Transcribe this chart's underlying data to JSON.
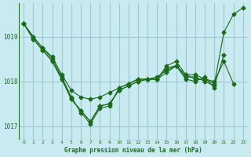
{
  "title": "Graphe pression niveau de la mer (hPa)",
  "bg_color": "#c8eaf0",
  "line_color": "#1a6b1a",
  "grid_color": "#a0c8d0",
  "ylabel_ticks": [
    1017,
    1018,
    1019
  ],
  "xlim": [
    -0.5,
    23.5
  ],
  "ylim": [
    1016.7,
    1019.75
  ],
  "series": [
    {
      "x": [
        0,
        1,
        2,
        3,
        4,
        5,
        6,
        7,
        8,
        9,
        10,
        11,
        12,
        13,
        14,
        15,
        16,
        17,
        18,
        19,
        20,
        21,
        22,
        23
      ],
      "y": [
        1019.3,
        1019.0,
        1018.75,
        1018.5,
        1018.1,
        1017.65,
        1017.3,
        1017.05,
        1017.4,
        1017.45,
        1017.85,
        1017.95,
        1018.05,
        1018.05,
        1018.05,
        1018.35,
        1018.45,
        1018.15,
        1018.15,
        1018.05,
        1017.95,
        1019.1,
        1019.5,
        1019.65
      ]
    },
    {
      "x": [
        0,
        1,
        2,
        3,
        4,
        5,
        6,
        7,
        8,
        9,
        10,
        11,
        12,
        13,
        14,
        15,
        16,
        17,
        18,
        19,
        20,
        21,
        22
      ],
      "y": [
        1019.3,
        1019.0,
        1018.75,
        1018.55,
        1018.15,
        1017.8,
        1017.65,
        1017.6,
        1017.65,
        1017.75,
        1017.85,
        1017.95,
        1018.05,
        1018.05,
        1018.1,
        1018.25,
        1018.35,
        1018.15,
        1018.05,
        1018.05,
        1018.0,
        1018.45,
        1017.95
      ]
    },
    {
      "x": [
        0,
        1,
        2,
        3,
        4,
        5,
        6,
        7,
        8,
        9,
        10,
        11,
        12,
        13,
        14,
        15,
        16,
        17,
        18,
        19,
        20,
        21
      ],
      "y": [
        1019.3,
        1018.95,
        1018.7,
        1018.45,
        1018.05,
        1017.6,
        1017.35,
        1017.1,
        1017.45,
        1017.5,
        1017.8,
        1017.9,
        1018.0,
        1018.05,
        1018.05,
        1018.3,
        1018.35,
        1018.1,
        1018.1,
        1018.0,
        1017.9,
        1018.6
      ]
    },
    {
      "x": [
        0,
        1,
        2,
        3,
        4,
        5,
        6,
        7,
        8,
        9,
        10,
        11,
        12,
        13,
        14,
        15,
        16,
        17,
        18,
        19,
        20
      ],
      "y": [
        1019.3,
        1018.95,
        1018.7,
        1018.45,
        1018.05,
        1017.6,
        1017.35,
        1017.1,
        1017.45,
        1017.5,
        1017.8,
        1017.9,
        1018.0,
        1018.05,
        1018.05,
        1018.2,
        1018.35,
        1018.05,
        1018.0,
        1018.1,
        1017.85
      ]
    }
  ]
}
